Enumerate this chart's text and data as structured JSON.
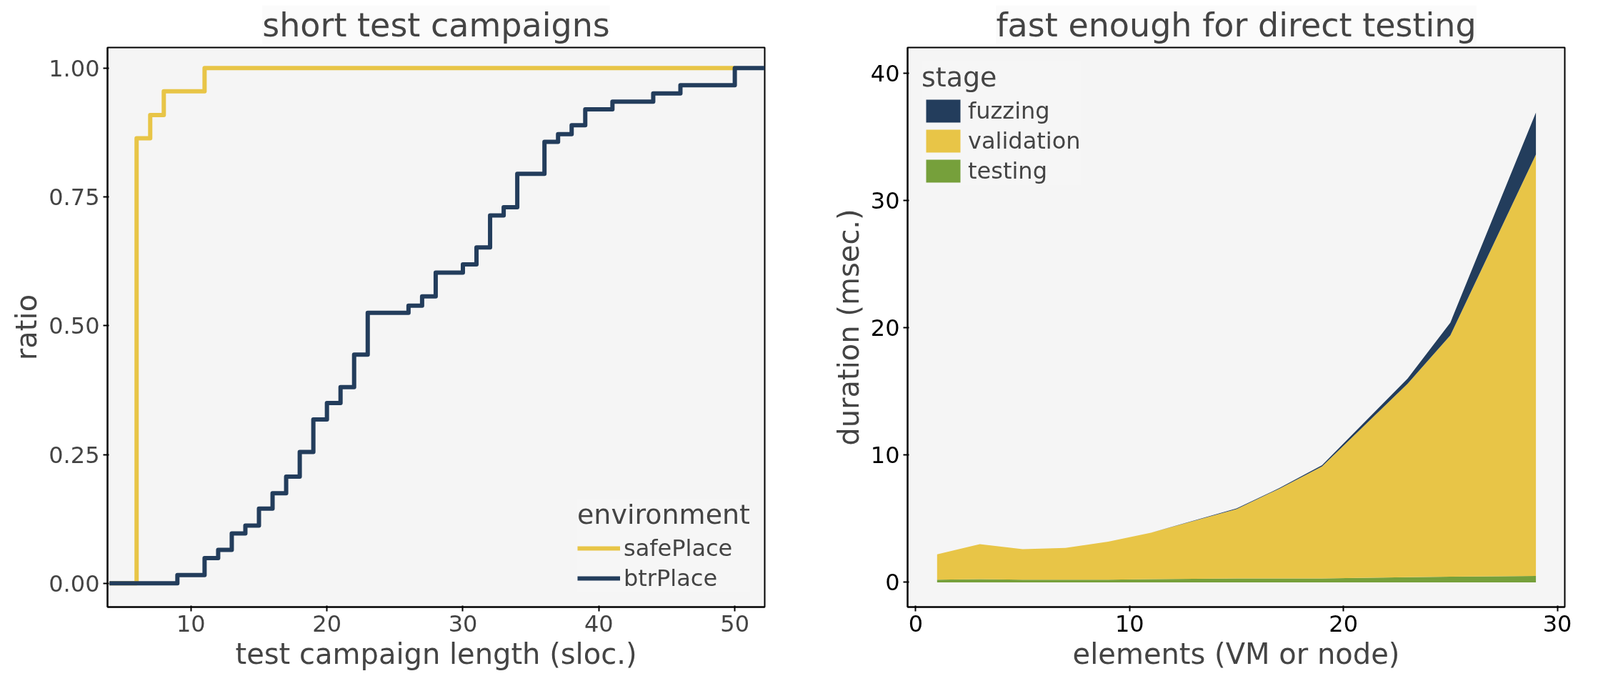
{
  "chart_data": [
    {
      "type": "step",
      "title": "short test campaigns",
      "xlabel": "test campaign length (sloc.)",
      "ylabel": "ratio",
      "legend_title": "environment",
      "legend": "bottom right",
      "grid": false,
      "xlim": [
        3.86,
        52.2
      ],
      "ylim": [
        -0.046,
        1.04
      ],
      "xticks": [
        10,
        20,
        30,
        40,
        50
      ],
      "yticks": [
        {
          "value": 0,
          "label": "0.00"
        },
        {
          "value": 0.25,
          "label": "0.25"
        },
        {
          "value": 0.5,
          "label": "0.50"
        },
        {
          "value": 0.75,
          "label": "0.75"
        },
        {
          "value": 1,
          "label": "1.00"
        }
      ],
      "series": [
        {
          "name": "safePlace",
          "color": "#e8c547",
          "x": [
            4,
            6,
            7,
            8,
            11,
            50
          ],
          "values": [
            0,
            0.864,
            0.909,
            0.955,
            1,
            1
          ]
        },
        {
          "name": "btrPlace",
          "color": "#233d5c",
          "x": [
            4,
            9,
            11,
            12,
            13,
            14,
            15,
            16,
            17,
            18,
            19,
            20,
            21,
            22,
            23,
            26,
            27,
            28,
            30,
            31,
            32,
            33,
            34,
            36,
            37,
            38,
            39,
            41,
            44,
            46,
            50,
            52.2
          ],
          "values": [
            0,
            0.016,
            0.049,
            0.065,
            0.097,
            0.112,
            0.145,
            0.175,
            0.207,
            0.255,
            0.318,
            0.35,
            0.381,
            0.444,
            0.525,
            0.539,
            0.557,
            0.603,
            0.619,
            0.652,
            0.714,
            0.73,
            0.795,
            0.857,
            0.872,
            0.889,
            0.92,
            0.935,
            0.951,
            0.967,
            1,
            1
          ]
        }
      ]
    },
    {
      "type": "area",
      "stacked": true,
      "title": "fast enough for direct testing",
      "xlabel": "elements (VM or node)",
      "ylabel": "duration (msec.)",
      "legend_title": "stage",
      "legend": "top left",
      "grid": false,
      "xlim": [
        -0.38,
        30.35
      ],
      "ylim": [
        -1.94,
        42
      ],
      "xticks": [
        0,
        10,
        20,
        30
      ],
      "yticks": [
        0,
        10,
        20,
        30,
        40
      ],
      "x": [
        1,
        3,
        5,
        7,
        9,
        11,
        15,
        17,
        19,
        23,
        25,
        29
      ],
      "series": [
        {
          "name": "testing",
          "color": "#76a03b",
          "values": [
            0.2,
            0.25,
            0.2,
            0.2,
            0.2,
            0.25,
            0.3,
            0.3,
            0.3,
            0.4,
            0.45,
            0.5
          ]
        },
        {
          "name": "validation",
          "color": "#e8c547",
          "values": [
            2.0,
            2.75,
            2.4,
            2.5,
            3.0,
            3.65,
            5.45,
            7.05,
            8.8,
            15.2,
            18.95,
            33.1
          ]
        },
        {
          "name": "fuzzing",
          "color": "#233d5c",
          "values": [
            0,
            0,
            0,
            0,
            0,
            0,
            0.05,
            0.05,
            0.1,
            0.4,
            1.0,
            3.3
          ]
        }
      ]
    }
  ]
}
